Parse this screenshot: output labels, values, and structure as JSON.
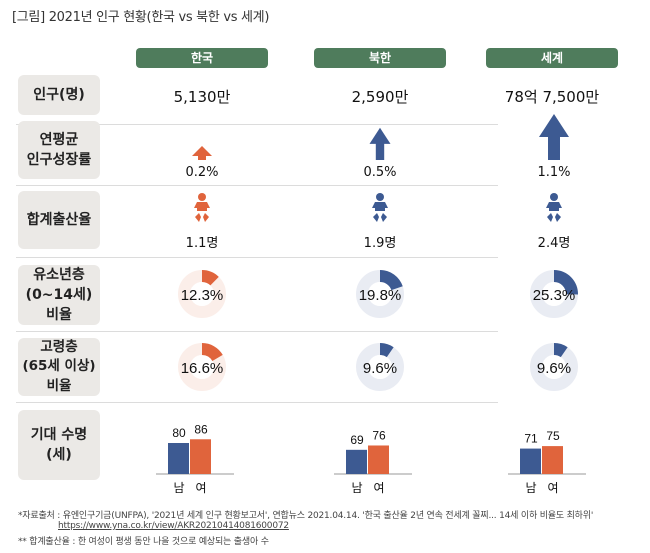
{
  "title": "[그림] 2021년 인구 현황(한국 vs 북한 vs 세계)",
  "columns": [
    "한국",
    "북한",
    "세계"
  ],
  "colors": {
    "header_green": "#4f7c5c",
    "korea_orange": "#e0643c",
    "blue": "#3d5a92",
    "korea_donut_bg": "#fbeee9",
    "blue_donut_bg": "#e9ecf3",
    "label_bg": "#ebe9e6"
  },
  "rows": {
    "population": {
      "label": "인구(명)",
      "values": [
        "5,130만",
        "2,590만",
        "78억 7,500만"
      ]
    },
    "growth": {
      "label_line1": "연평균",
      "label_line2": "인구성장률",
      "values": [
        "0.2%",
        "0.5%",
        "1.1%"
      ],
      "numeric": [
        0.2,
        0.5,
        1.1
      ]
    },
    "fertility": {
      "label": "합계출산율",
      "values": [
        "1.1명",
        "1.9명",
        "2.4명"
      ],
      "numeric": [
        1.1,
        1.9,
        2.4
      ]
    },
    "youth": {
      "label_line1": "유소년층",
      "label_line2": "(0~14세) 비율",
      "values": [
        "12.3%",
        "19.8%",
        "25.3%"
      ],
      "numeric": [
        12.3,
        19.8,
        25.3
      ]
    },
    "elderly": {
      "label_line1": "고령층",
      "label_line2": "(65세 이상) 비율",
      "values": [
        "16.6%",
        "9.6%",
        "9.6%"
      ],
      "numeric": [
        16.6,
        9.6,
        9.6
      ]
    },
    "life": {
      "label_line1": "기대 수명",
      "label_line2": "(세)",
      "male_label": "남",
      "female_label": "여",
      "male": [
        80,
        69,
        71
      ],
      "female": [
        86,
        76,
        75
      ]
    }
  },
  "footnotes": {
    "source": "*자료출처 :  유엔인구기금(UNFPA), '2021년 세계 인구 현황보고서', 연합뉴스 2021.04.14. '한국 출산율 2년 연속 전세계 꼴찌... 14세 이하 비율도 최하위'",
    "url": "https://www.yna.co.kr/view/AKR20210414081600072",
    "note": "** 합계출산율 : 한 여성이 평생 동안 나을 것으로 예상되는 출생아 수"
  },
  "chart_data": {
    "type": "table",
    "title": "[그림] 2021년 인구 현황(한국 vs 북한 vs 세계)",
    "categories": [
      "한국",
      "북한",
      "세계"
    ],
    "series": [
      {
        "name": "인구(명)",
        "values": [
          "5,130만",
          "2,590만",
          "78억 7,500만"
        ]
      },
      {
        "name": "연평균 인구성장률(%)",
        "values": [
          0.2,
          0.5,
          1.1
        ]
      },
      {
        "name": "합계출산율(명)",
        "values": [
          1.1,
          1.9,
          2.4
        ]
      },
      {
        "name": "유소년층(0~14세) 비율(%)",
        "values": [
          12.3,
          19.8,
          25.3
        ]
      },
      {
        "name": "고령층(65세 이상) 비율(%)",
        "values": [
          16.6,
          9.6,
          9.6
        ]
      },
      {
        "name": "기대 수명 남(세)",
        "values": [
          80,
          69,
          71
        ]
      },
      {
        "name": "기대 수명 여(세)",
        "values": [
          86,
          76,
          75
        ]
      }
    ]
  }
}
